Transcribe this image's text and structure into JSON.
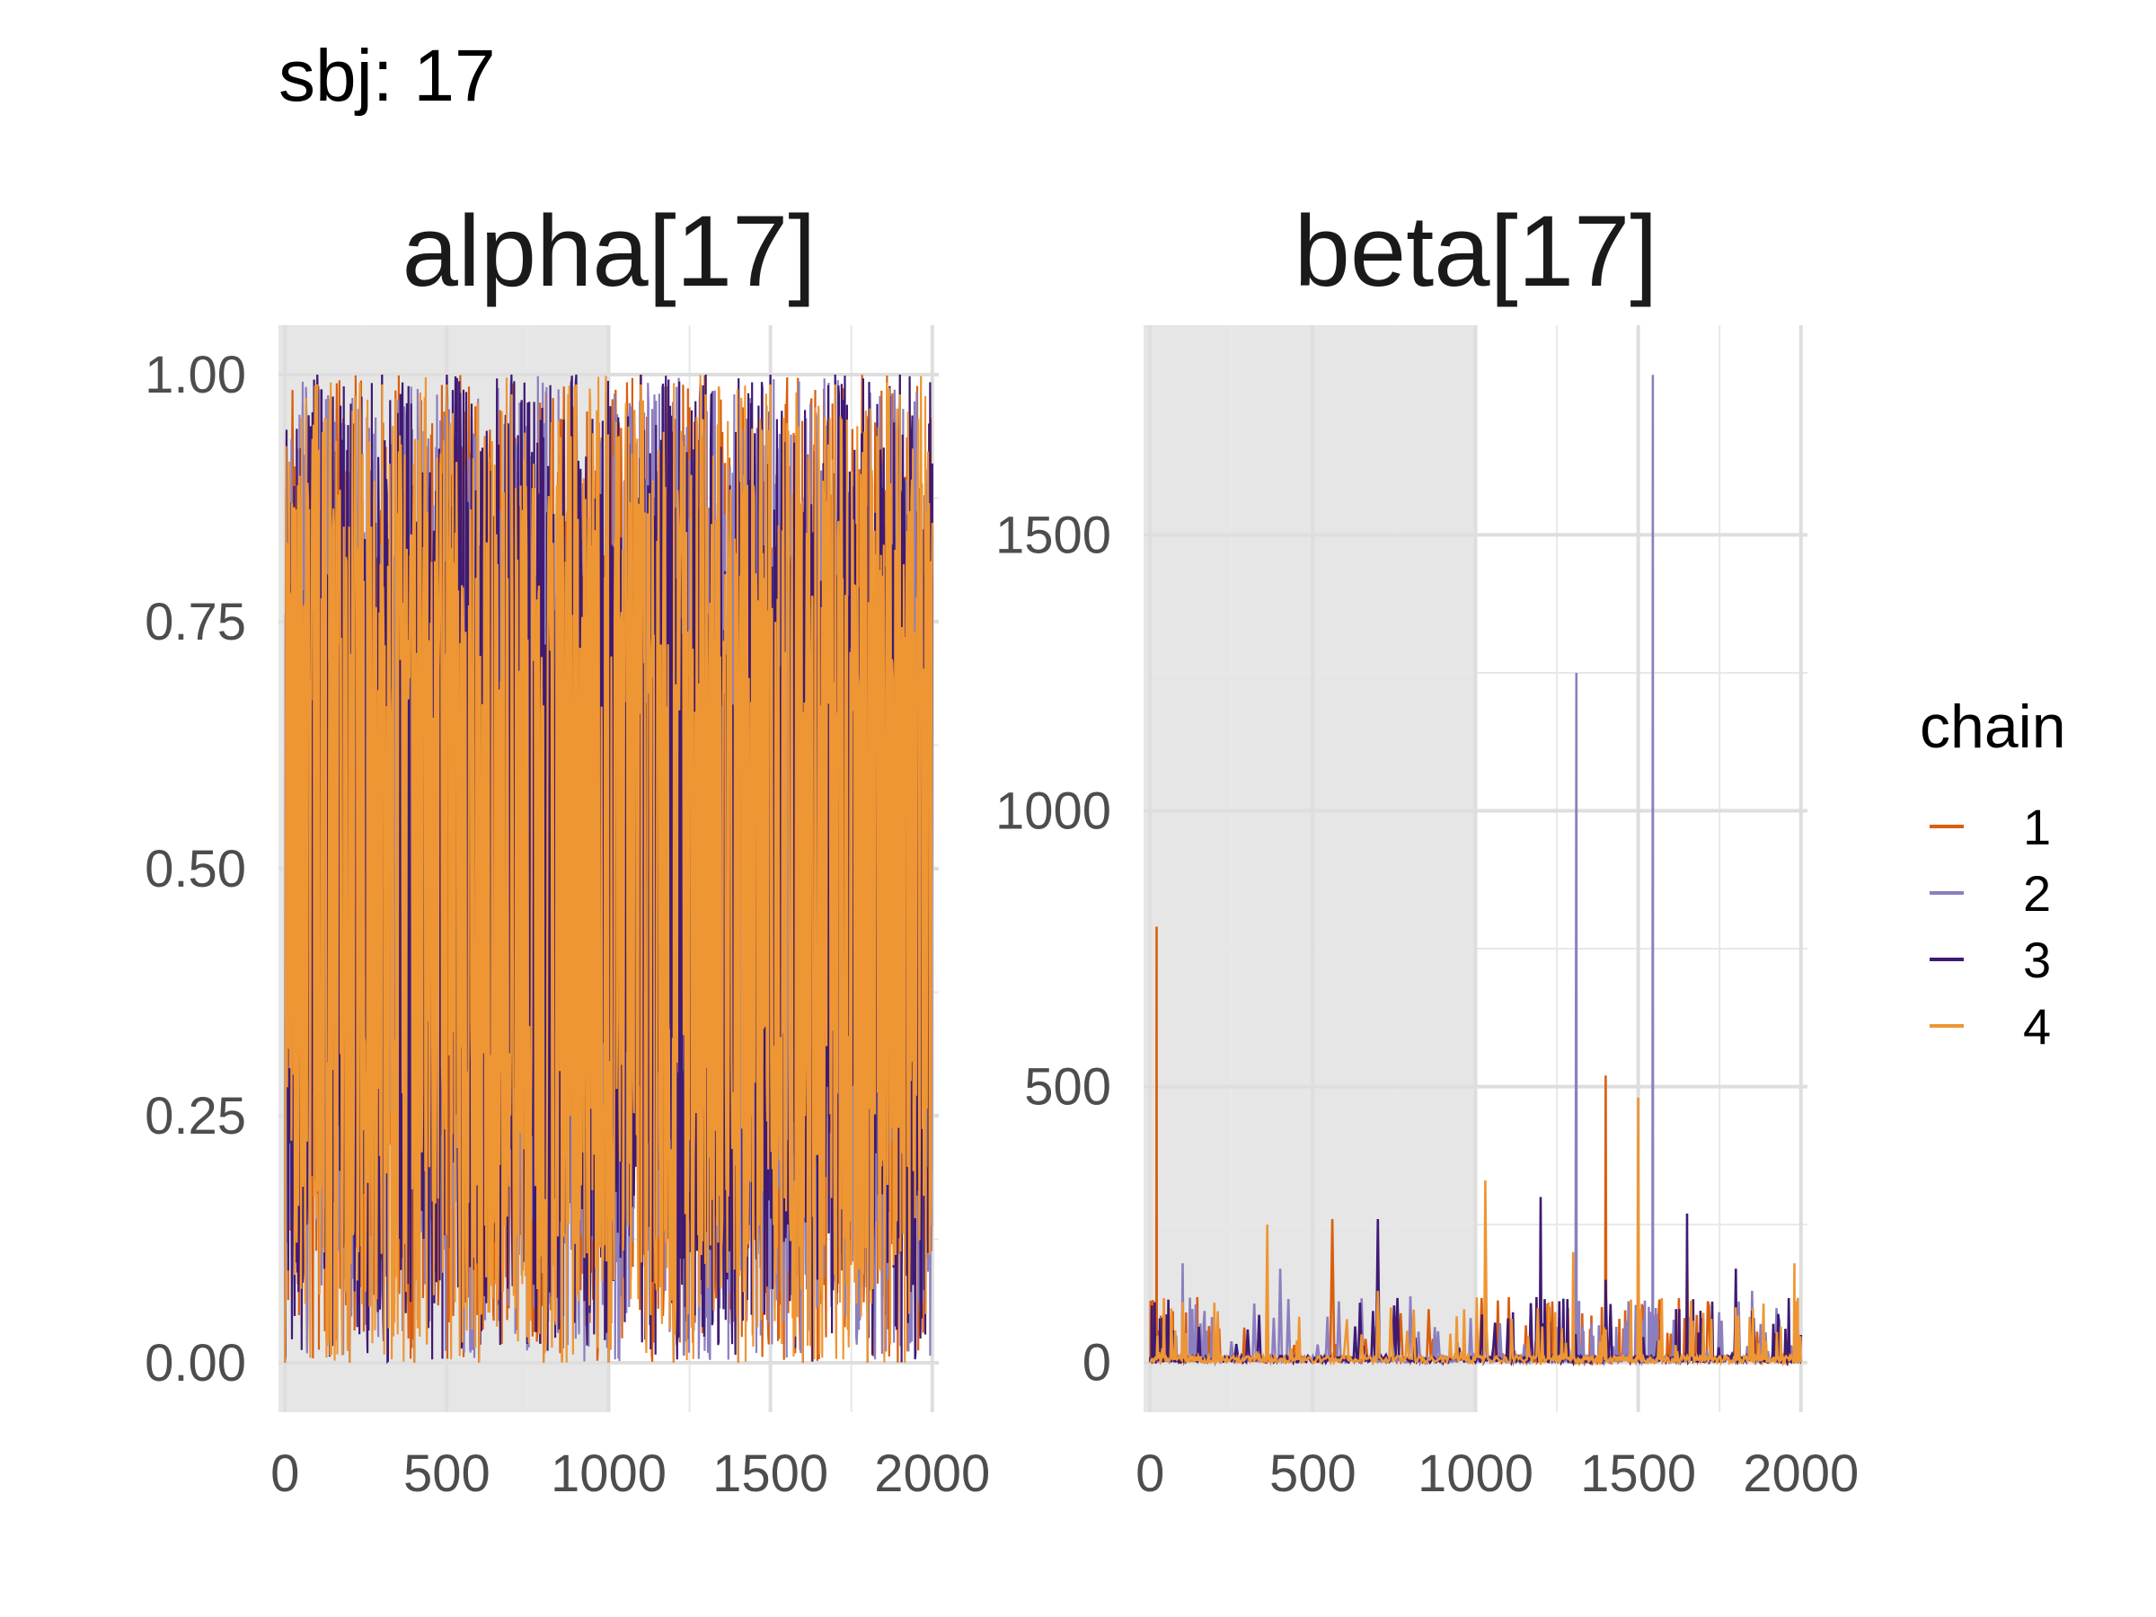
{
  "figure": {
    "suptitle": "sbj: 17"
  },
  "legend": {
    "title": "chain",
    "items": [
      {
        "label": "1",
        "color": "#d95f0e"
      },
      {
        "label": "2",
        "color": "#8c7fbf"
      },
      {
        "label": "3",
        "color": "#3f1a73"
      },
      {
        "label": "4",
        "color": "#ee9633"
      }
    ]
  },
  "warmup_shading": {
    "x_range": [
      0,
      1000
    ],
    "color": "#e6e6e6"
  },
  "chart_data": [
    {
      "type": "line",
      "title": "alpha[17]",
      "xlabel": "",
      "ylabel": "",
      "xlim": [
        -20,
        2020
      ],
      "ylim": [
        -0.05,
        1.05
      ],
      "x_ticks": [
        0,
        500,
        1000,
        1500,
        2000
      ],
      "x_tick_labels": [
        "0",
        "500",
        "1000",
        "1500",
        "2000"
      ],
      "y_ticks": [
        0,
        0.25,
        0.5,
        0.75,
        1
      ],
      "y_tick_labels": [
        "0.00",
        "0.25",
        "0.50",
        "0.75",
        "1.00"
      ],
      "grid": true,
      "legend_position": "right",
      "series": [
        {
          "name": "1",
          "x": [
            0,
            100,
            200,
            300,
            400,
            500,
            600,
            700,
            800,
            900,
            1000,
            1100,
            1200,
            1300,
            1400,
            1500,
            1600,
            1700,
            1800,
            1900,
            2000
          ],
          "y": [
            0.0,
            0.99,
            0.0,
            0.98,
            0.0,
            0.99,
            0.0,
            0.99,
            0.0,
            0.98,
            0.0,
            0.99,
            0.0,
            0.98,
            0.0,
            0.99,
            0.0,
            0.98,
            0.0,
            0.99,
            0.9
          ]
        },
        {
          "name": "2",
          "x": [
            0,
            100,
            200,
            300,
            400,
            500,
            600,
            700,
            800,
            900,
            1000,
            1100,
            1200,
            1300,
            1400,
            1500,
            1600,
            1700,
            1800,
            1900,
            2000
          ],
          "y": [
            0.0,
            1.0,
            0.0,
            1.0,
            0.0,
            1.0,
            0.0,
            1.0,
            0.0,
            1.0,
            0.0,
            1.0,
            0.0,
            1.0,
            0.0,
            1.0,
            0.0,
            1.0,
            0.0,
            1.0,
            0.9
          ]
        },
        {
          "name": "3",
          "x": [
            0,
            100,
            200,
            300,
            400,
            500,
            600,
            700,
            800,
            900,
            1000,
            1100,
            1200,
            1300,
            1400,
            1500,
            1600,
            1700,
            1800,
            1900,
            2000
          ],
          "y": [
            0.0,
            1.0,
            0.0,
            1.0,
            0.0,
            1.0,
            0.0,
            1.0,
            0.0,
            1.0,
            0.0,
            1.0,
            0.0,
            1.0,
            0.0,
            1.0,
            0.0,
            1.0,
            0.0,
            1.0,
            0.91
          ]
        },
        {
          "name": "4",
          "x": [
            0,
            100,
            200,
            300,
            400,
            500,
            600,
            700,
            800,
            900,
            1000,
            1100,
            1200,
            1300,
            1400,
            1500,
            1600,
            1700,
            1800,
            1900,
            2000
          ],
          "y": [
            0.0,
            0.99,
            0.0,
            0.99,
            0.0,
            0.99,
            0.0,
            0.98,
            0.0,
            0.99,
            0.0,
            0.99,
            0.0,
            0.98,
            0.0,
            0.99,
            0.0,
            0.99,
            0.0,
            0.98,
            0.85
          ]
        }
      ]
    },
    {
      "type": "line",
      "title": "beta[17]",
      "xlabel": "",
      "ylabel": "",
      "xlim": [
        -20,
        2020
      ],
      "ylim": [
        -90,
        1880
      ],
      "x_ticks": [
        0,
        500,
        1000,
        1500,
        2000
      ],
      "x_tick_labels": [
        "0",
        "500",
        "1000",
        "1500",
        "2000"
      ],
      "y_ticks": [
        0,
        500,
        1000,
        1500
      ],
      "y_tick_labels": [
        "0",
        "500",
        "1000",
        "1500"
      ],
      "grid": true,
      "legend_position": "right",
      "series": [
        {
          "name": "1",
          "x": [
            0,
            20,
            40,
            100,
            160,
            300,
            560,
            800,
            1050,
            1200,
            1320,
            1400,
            1480,
            1550,
            1650,
            1800,
            2000
          ],
          "y": [
            0,
            790,
            0,
            20,
            0,
            10,
            260,
            0,
            5,
            0,
            0,
            520,
            0,
            0,
            220,
            0,
            0
          ]
        },
        {
          "name": "2",
          "x": [
            0,
            100,
            200,
            400,
            600,
            800,
            1000,
            1200,
            1310,
            1330,
            1400,
            1500,
            1545,
            1560,
            1700,
            1850,
            2000
          ],
          "y": [
            0,
            180,
            0,
            170,
            0,
            120,
            0,
            20,
            1250,
            0,
            50,
            0,
            1790,
            0,
            30,
            130,
            0
          ]
        },
        {
          "name": "3",
          "x": [
            0,
            30,
            100,
            300,
            500,
            700,
            900,
            1100,
            1200,
            1300,
            1400,
            1600,
            1650,
            1700,
            1800,
            1900,
            2000
          ],
          "y": [
            0,
            80,
            0,
            60,
            0,
            260,
            0,
            80,
            300,
            0,
            150,
            0,
            270,
            0,
            170,
            0,
            50
          ]
        },
        {
          "name": "4",
          "x": [
            0,
            100,
            200,
            360,
            500,
            700,
            900,
            1030,
            1200,
            1300,
            1400,
            1500,
            1600,
            1700,
            1800,
            1900,
            1980,
            2000
          ],
          "y": [
            0,
            110,
            0,
            250,
            0,
            130,
            0,
            330,
            0,
            200,
            60,
            480,
            0,
            90,
            100,
            0,
            180,
            0
          ]
        }
      ]
    }
  ]
}
